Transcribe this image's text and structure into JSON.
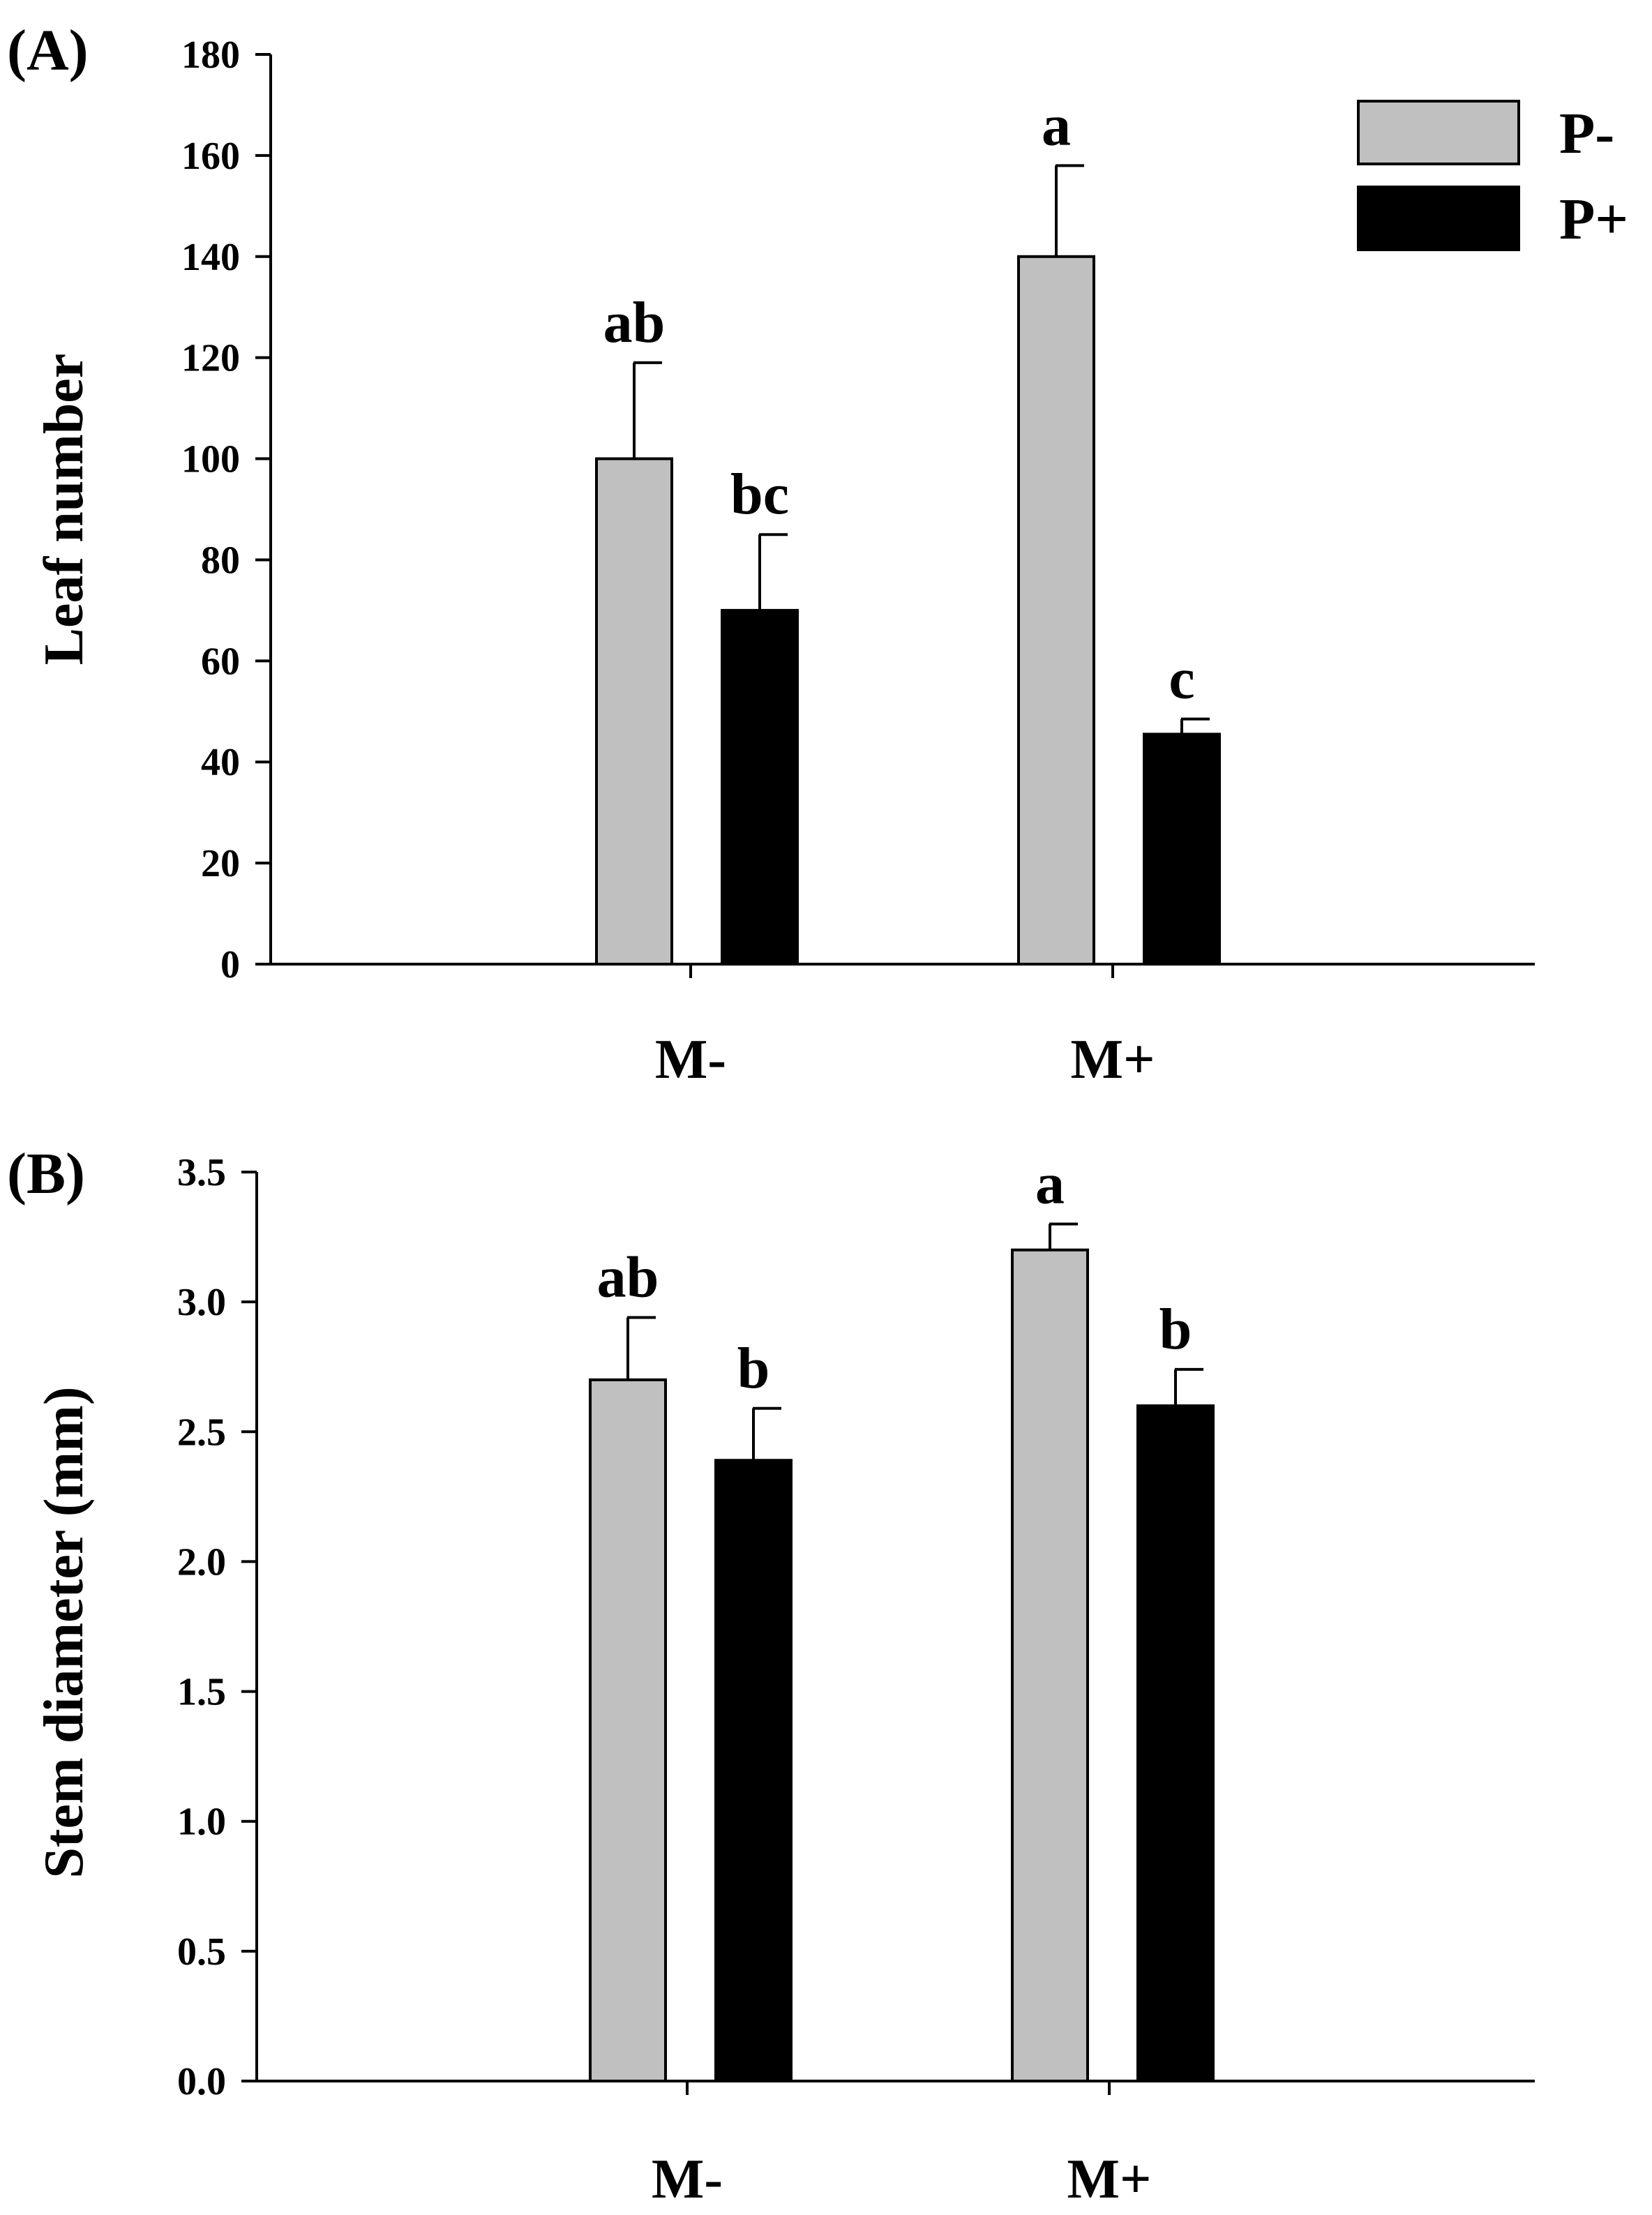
{
  "chart_data": [
    {
      "type": "bar",
      "panel_label": "(A)",
      "ylabel": "Leaf number",
      "xlabel": "",
      "categories": [
        "M-",
        "M+"
      ],
      "ylim": [
        0,
        180
      ],
      "yticks": [
        0,
        20,
        40,
        60,
        80,
        100,
        120,
        140,
        160,
        180
      ],
      "ytick_labels": [
        "0",
        "20",
        "40",
        "60",
        "80",
        "100",
        "120",
        "140",
        "160",
        "180"
      ],
      "series": [
        {
          "name": "P-",
          "color": "#c0c0c0",
          "values": [
            100,
            140
          ],
          "errors": [
            19,
            18
          ],
          "letters": [
            "ab",
            "a"
          ]
        },
        {
          "name": "P+",
          "color": "#000000",
          "values": [
            70,
            45.5
          ],
          "errors": [
            15,
            3
          ],
          "letters": [
            "bc",
            "c"
          ]
        }
      ],
      "legend": {
        "position": "top-right",
        "entries": [
          "P-",
          "P+"
        ]
      }
    },
    {
      "type": "bar",
      "panel_label": "(B)",
      "ylabel": "Stem diameter (mm)",
      "xlabel": "",
      "categories": [
        "M-",
        "M+"
      ],
      "ylim": [
        0,
        3.5
      ],
      "yticks": [
        0,
        0.5,
        1.0,
        1.5,
        2.0,
        2.5,
        3.0,
        3.5
      ],
      "ytick_labels": [
        "0.0",
        "0.5",
        "1.0",
        "1.5",
        "2.0",
        "2.5",
        "3.0",
        "3.5"
      ],
      "series": [
        {
          "name": "P-",
          "color": "#c0c0c0",
          "values": [
            2.7,
            3.2
          ],
          "errors": [
            0.24,
            0.1
          ],
          "letters": [
            "ab",
            "a"
          ]
        },
        {
          "name": "P+",
          "color": "#000000",
          "values": [
            2.39,
            2.6
          ],
          "errors": [
            0.2,
            0.14
          ],
          "letters": [
            "b",
            "b"
          ]
        }
      ]
    }
  ]
}
